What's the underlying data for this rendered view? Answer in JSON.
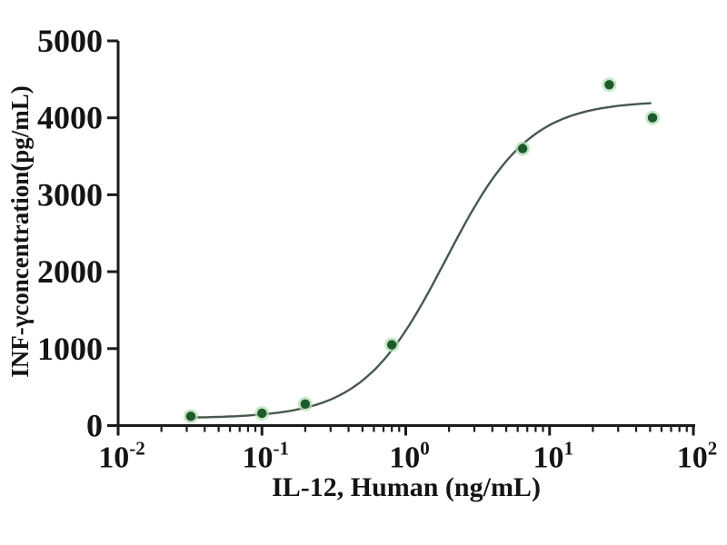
{
  "chart_data": {
    "type": "scatter",
    "title": "",
    "xlabel": "IL-12, Human (ng/mL)",
    "ylabel": "INF-γconcentration(pg/mL)",
    "x_scale": "log10",
    "xlim": [
      0.01,
      100
    ],
    "ylim": [
      0,
      5000
    ],
    "grid": false,
    "legend": "none",
    "y_ticks": [
      {
        "value": 0,
        "label": "0"
      },
      {
        "value": 1000,
        "label": "1000"
      },
      {
        "value": 2000,
        "label": "2000"
      },
      {
        "value": 3000,
        "label": "3000"
      },
      {
        "value": 4000,
        "label": "4000"
      },
      {
        "value": 5000,
        "label": "5000"
      }
    ],
    "x_ticks": [
      {
        "value": 0.01,
        "base": "10",
        "exp": "-2"
      },
      {
        "value": 0.1,
        "base": "10",
        "exp": "-1"
      },
      {
        "value": 1,
        "base": "10",
        "exp": "0"
      },
      {
        "value": 10,
        "base": "10",
        "exp": "1"
      },
      {
        "value": 100,
        "base": "10",
        "exp": "2"
      }
    ],
    "points": [
      {
        "x": 0.032,
        "y": 120
      },
      {
        "x": 0.1,
        "y": 160
      },
      {
        "x": 0.2,
        "y": 280
      },
      {
        "x": 0.8,
        "y": 1050
      },
      {
        "x": 6.5,
        "y": 3600
      },
      {
        "x": 26,
        "y": 4430
      },
      {
        "x": 52,
        "y": 4000
      }
    ],
    "fit_curve": {
      "model": "4PL",
      "bottom": 95,
      "top": 4220,
      "ec50": 1.9,
      "hill": 1.5,
      "x_start": 0.032,
      "x_end": 51
    },
    "colors": {
      "axis": "#1b1b1b",
      "text": "#141414",
      "curve": "#46594c",
      "point_fill": "#1e5a2c",
      "point_halo": "#b4dfb8"
    }
  }
}
